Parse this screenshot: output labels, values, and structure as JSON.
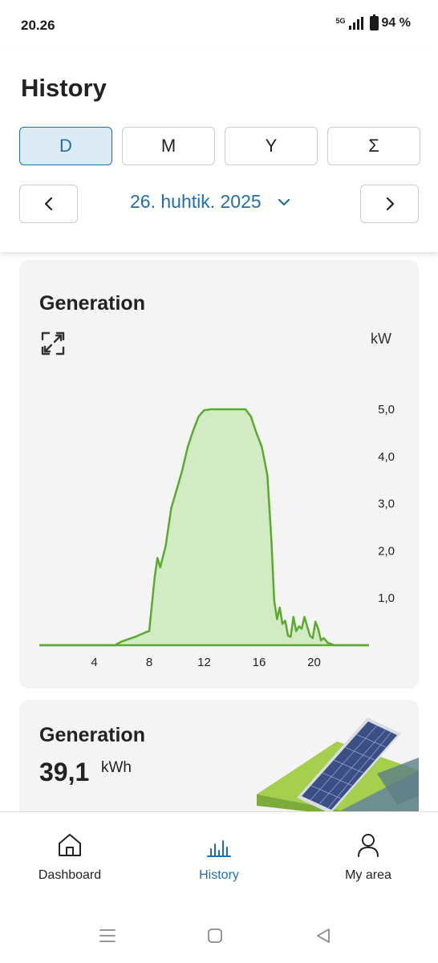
{
  "status_bar": {
    "time": "20.26",
    "network": "5G",
    "battery": "94 %"
  },
  "header": {
    "title": "History",
    "period_tabs": [
      {
        "label": "D",
        "active": true
      },
      {
        "label": "M",
        "active": false
      },
      {
        "label": "Y",
        "active": false
      },
      {
        "label": "Σ",
        "active": false
      }
    ],
    "date": "26. huhtik. 2025"
  },
  "generation_chart": {
    "title": "Generation",
    "unit": "kW"
  },
  "generation_total": {
    "title": "Generation",
    "value": "39,1",
    "unit": "kWh"
  },
  "bottom_nav": {
    "items": [
      {
        "label": "Dashboard",
        "icon": "home-icon",
        "active": false
      },
      {
        "label": "History",
        "icon": "bar-chart-icon",
        "active": true
      },
      {
        "label": "My area",
        "icon": "person-icon",
        "active": false
      }
    ]
  },
  "colors": {
    "accent": "#1f6fb0",
    "line": "#5aaa2e",
    "fill": "#d3ebc4"
  },
  "chart_data": {
    "type": "area",
    "ylabel": "kW",
    "xlim": [
      0,
      24
    ],
    "ylim": [
      0,
      5.0
    ],
    "x_ticks": [
      4,
      8,
      12,
      16,
      20
    ],
    "y_ticks": [
      "1,0",
      "2,0",
      "3,0",
      "4,0",
      "5,0"
    ],
    "y_tick_values": [
      1,
      2,
      3,
      4,
      5
    ],
    "grid": false,
    "series": [
      {
        "x": [
          0,
          5.5,
          6,
          7,
          7.8,
          8,
          8.4,
          8.6,
          8.8,
          9.2,
          9.6,
          10,
          10.4,
          10.8,
          11.2,
          11.6,
          12,
          12.5,
          13,
          13.5,
          14,
          14.5,
          15,
          15.4,
          15.8,
          16.2,
          16.6,
          16.9,
          17.1,
          17.3,
          17.5,
          17.7,
          17.9,
          18.1,
          18.3,
          18.5,
          18.7,
          18.9,
          19.1,
          19.3,
          19.5,
          19.7,
          19.9,
          20.1,
          20.3,
          20.5,
          20.7,
          21,
          21.5,
          24
        ],
        "y": [
          0,
          0,
          0.08,
          0.18,
          0.28,
          0.3,
          1.45,
          1.85,
          1.65,
          2.1,
          2.9,
          3.3,
          3.7,
          4.2,
          4.55,
          4.85,
          4.98,
          5.0,
          5.0,
          5.0,
          5.0,
          5.0,
          5.0,
          4.85,
          4.5,
          4.2,
          3.6,
          2.2,
          0.95,
          0.55,
          0.8,
          0.45,
          0.52,
          0.2,
          0.18,
          0.6,
          0.3,
          0.4,
          0.35,
          0.6,
          0.4,
          0.2,
          0.15,
          0.5,
          0.35,
          0.1,
          0.15,
          0.05,
          0,
          0
        ]
      }
    ]
  }
}
